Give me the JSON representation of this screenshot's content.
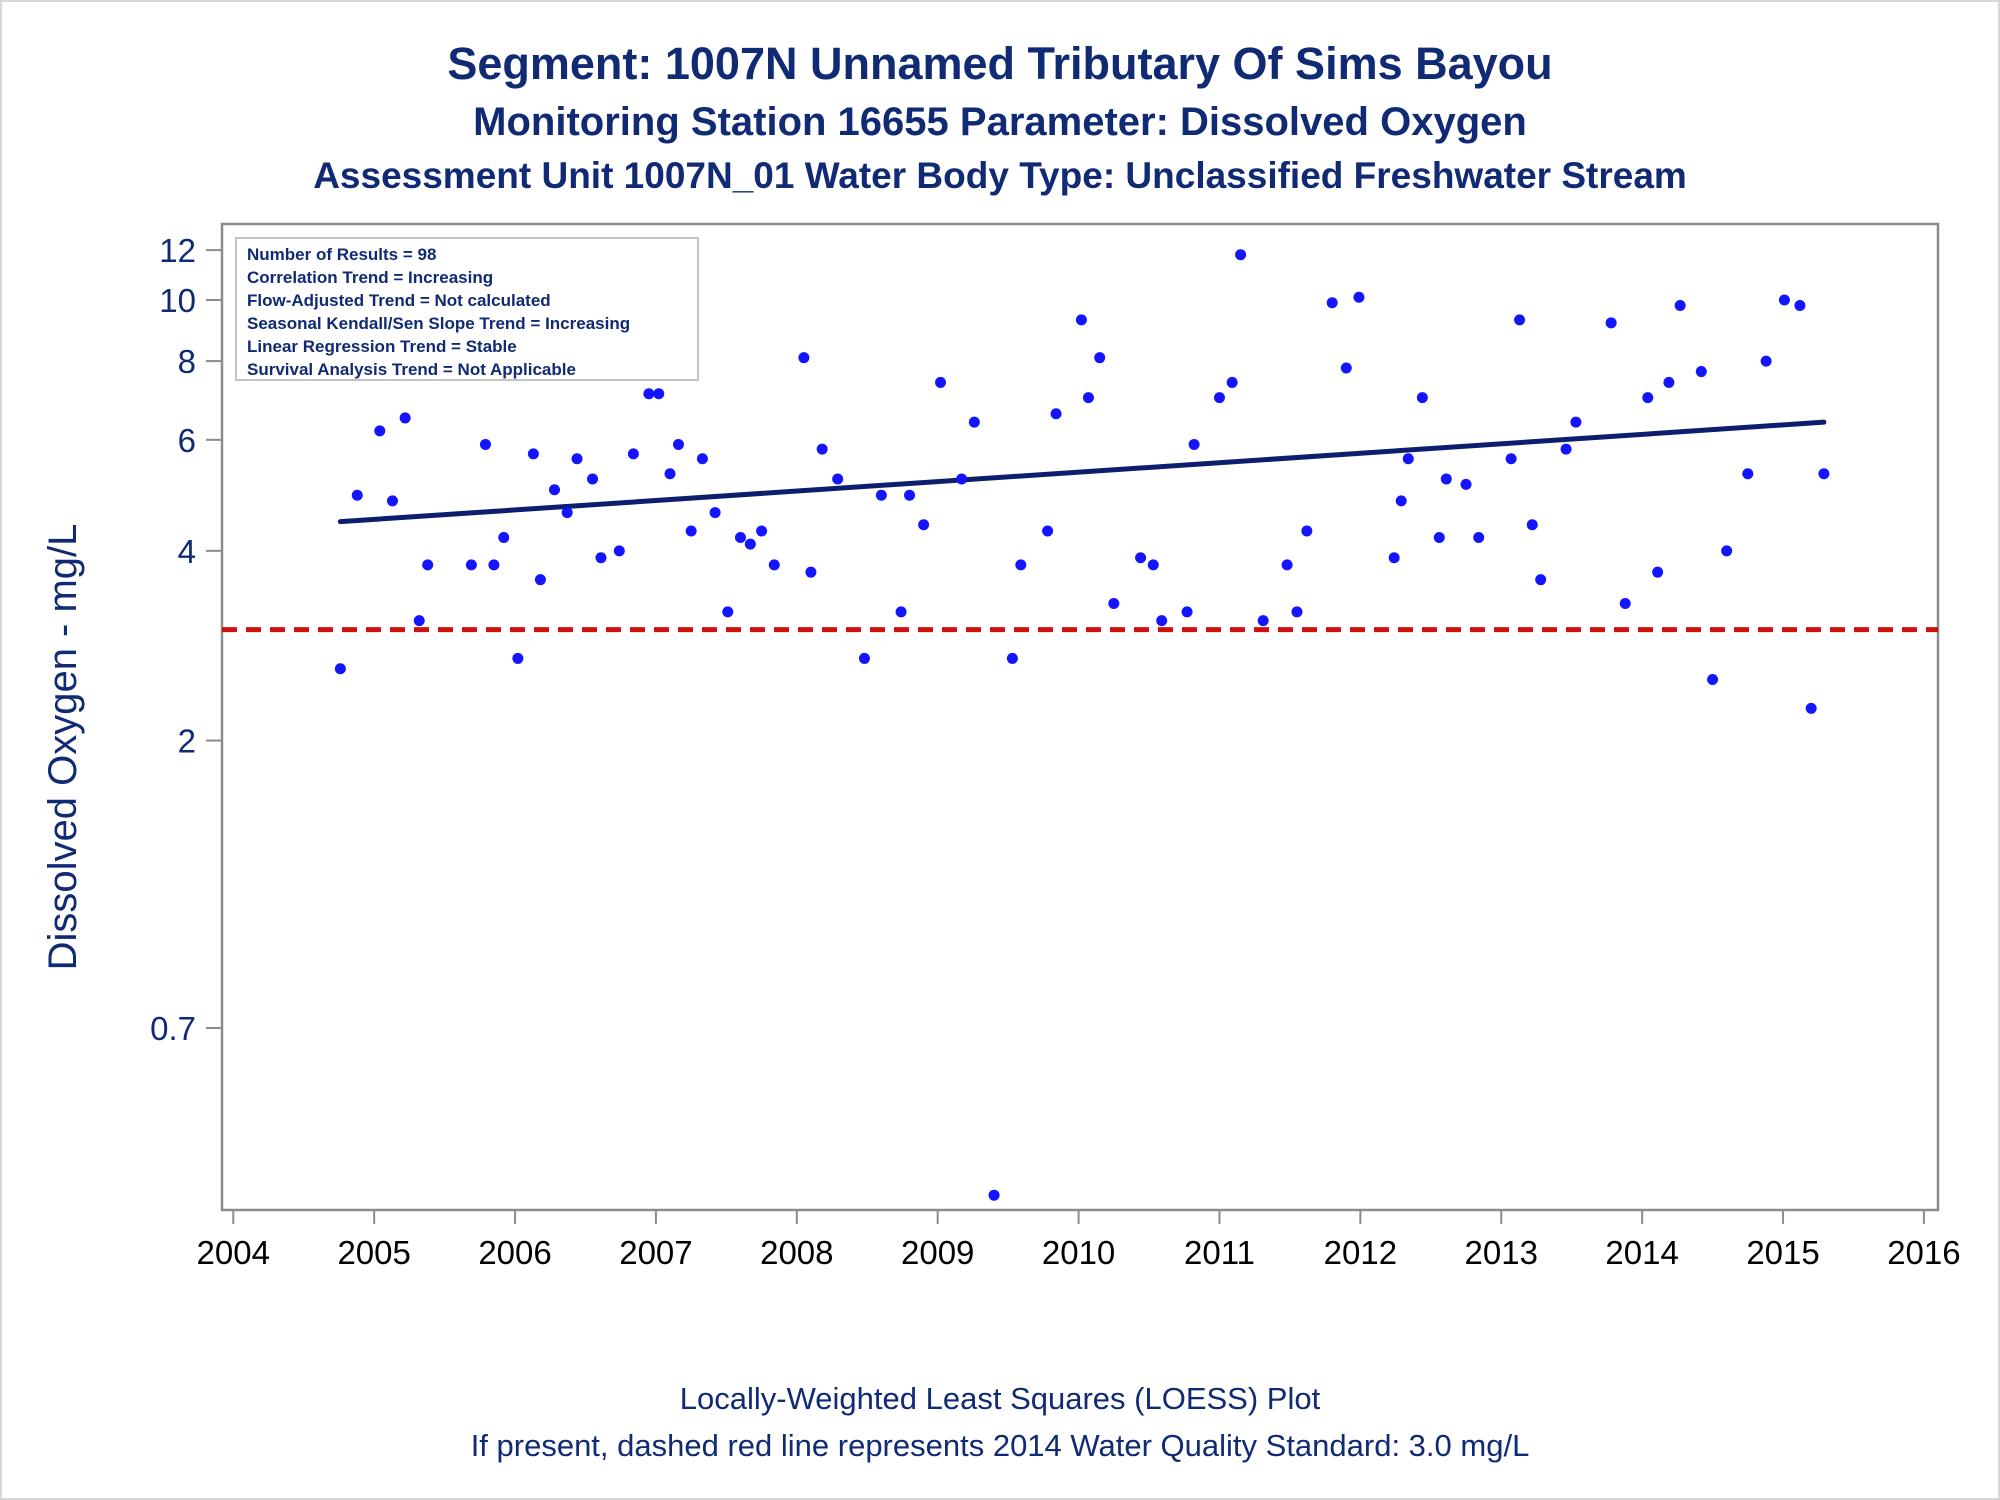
{
  "titles": {
    "line1": "Segment: 1007N  Unnamed Tributary Of Sims Bayou",
    "line2": "Monitoring Station 16655 Parameter: Dissolved Oxygen",
    "line3": "Assessment Unit 1007N_01   Water Body Type: Unclassified Freshwater Stream"
  },
  "footer": {
    "line1": "Locally-Weighted Least Squares (LOESS) Plot",
    "line2": "If present, dashed red line represents 2014 Water Quality Standard: 3.0 mg/L"
  },
  "colors": {
    "text": "#102a73",
    "points": "#1414ff",
    "trend_line": "#0c1f6e",
    "standard_line": "#cc1111",
    "axis": "#8c8c8c"
  },
  "chart_data": {
    "type": "scatter",
    "ylabel": "Dissolved Oxygen - mg/L",
    "xlabel": "",
    "y_scale": "log",
    "ylim": [
      0.36,
      13.2
    ],
    "xlim": [
      2003.92,
      2016.1
    ],
    "y_ticks": [
      12,
      10,
      8,
      6,
      4,
      2,
      0.7
    ],
    "y_tick_labels": [
      "12",
      "10",
      "8",
      "6",
      "4",
      "2",
      "0.7"
    ],
    "x_ticks": [
      2004,
      2005,
      2006,
      2007,
      2008,
      2009,
      2010,
      2011,
      2012,
      2013,
      2014,
      2015,
      2016
    ],
    "x_tick_labels": [
      "2004",
      "2005",
      "2006",
      "2007",
      "2008",
      "2009",
      "2010",
      "2011",
      "2012",
      "2013",
      "2014",
      "2015",
      "2016"
    ],
    "grid": false,
    "legend_position": "top-left",
    "stats_box": [
      "Number of Results = 98",
      "Correlation Trend = Increasing",
      "Flow-Adjusted Trend = Not calculated",
      "Seasonal Kendall/Sen Slope Trend = Increasing",
      "Linear Regression Trend = Stable",
      "Survival Analysis Trend = Not Applicable"
    ],
    "standard_line": {
      "y": 3.0
    },
    "trend_line": {
      "x": [
        2004.76,
        2015.29
      ],
      "y": [
        4.45,
        6.4
      ]
    },
    "points": [
      [
        2004.76,
        2.6
      ],
      [
        2004.88,
        4.9
      ],
      [
        2005.04,
        6.2
      ],
      [
        2005.13,
        4.8
      ],
      [
        2005.22,
        6.5
      ],
      [
        2005.32,
        3.1
      ],
      [
        2005.38,
        3.8
      ],
      [
        2005.69,
        3.8
      ],
      [
        2005.79,
        5.9
      ],
      [
        2005.85,
        3.8
      ],
      [
        2005.92,
        4.2
      ],
      [
        2006.02,
        2.7
      ],
      [
        2006.13,
        5.7
      ],
      [
        2006.18,
        3.6
      ],
      [
        2006.28,
        5.0
      ],
      [
        2006.37,
        4.6
      ],
      [
        2006.44,
        5.6
      ],
      [
        2006.55,
        5.2
      ],
      [
        2006.61,
        3.9
      ],
      [
        2006.74,
        4.0
      ],
      [
        2006.84,
        5.7
      ],
      [
        2006.95,
        7.1
      ],
      [
        2007.02,
        7.1
      ],
      [
        2007.1,
        5.3
      ],
      [
        2007.16,
        5.9
      ],
      [
        2007.25,
        4.3
      ],
      [
        2007.33,
        5.6
      ],
      [
        2007.42,
        4.6
      ],
      [
        2007.51,
        3.2
      ],
      [
        2007.6,
        4.2
      ],
      [
        2007.67,
        4.1
      ],
      [
        2007.75,
        4.3
      ],
      [
        2007.84,
        3.8
      ],
      [
        2008.05,
        8.1
      ],
      [
        2008.1,
        3.7
      ],
      [
        2008.18,
        5.8
      ],
      [
        2008.29,
        5.2
      ],
      [
        2008.48,
        2.7
      ],
      [
        2008.6,
        4.9
      ],
      [
        2008.74,
        3.2
      ],
      [
        2008.8,
        4.9
      ],
      [
        2008.9,
        4.4
      ],
      [
        2009.02,
        7.4
      ],
      [
        2009.17,
        5.2
      ],
      [
        2009.26,
        6.4
      ],
      [
        2009.4,
        0.38
      ],
      [
        2009.53,
        2.7
      ],
      [
        2009.59,
        3.8
      ],
      [
        2009.78,
        4.3
      ],
      [
        2009.84,
        6.6
      ],
      [
        2010.02,
        9.3
      ],
      [
        2010.07,
        7.0
      ],
      [
        2010.15,
        8.1
      ],
      [
        2010.25,
        3.3
      ],
      [
        2010.44,
        3.9
      ],
      [
        2010.53,
        3.8
      ],
      [
        2010.59,
        3.1
      ],
      [
        2010.77,
        3.2
      ],
      [
        2010.82,
        5.9
      ],
      [
        2011.0,
        7.0
      ],
      [
        2011.09,
        7.4
      ],
      [
        2011.15,
        11.8
      ],
      [
        2011.31,
        3.1
      ],
      [
        2011.48,
        3.8
      ],
      [
        2011.55,
        3.2
      ],
      [
        2011.62,
        4.3
      ],
      [
        2011.8,
        9.9
      ],
      [
        2011.9,
        7.8
      ],
      [
        2011.99,
        10.1
      ],
      [
        2012.24,
        3.9
      ],
      [
        2012.29,
        4.8
      ],
      [
        2012.34,
        5.6
      ],
      [
        2012.44,
        7.0
      ],
      [
        2012.56,
        4.2
      ],
      [
        2012.61,
        5.2
      ],
      [
        2012.75,
        5.1
      ],
      [
        2012.84,
        4.2
      ],
      [
        2013.07,
        5.6
      ],
      [
        2013.13,
        9.3
      ],
      [
        2013.22,
        4.4
      ],
      [
        2013.28,
        3.6
      ],
      [
        2013.46,
        5.8
      ],
      [
        2013.53,
        6.4
      ],
      [
        2013.78,
        9.2
      ],
      [
        2013.88,
        3.3
      ],
      [
        2014.04,
        7.0
      ],
      [
        2014.11,
        3.7
      ],
      [
        2014.19,
        7.4
      ],
      [
        2014.27,
        9.8
      ],
      [
        2014.42,
        7.7
      ],
      [
        2014.5,
        2.5
      ],
      [
        2014.6,
        4.0
      ],
      [
        2014.75,
        5.3
      ],
      [
        2014.88,
        8.0
      ],
      [
        2015.01,
        10.0
      ],
      [
        2015.12,
        9.8
      ],
      [
        2015.2,
        2.25
      ],
      [
        2015.29,
        5.3
      ]
    ]
  }
}
